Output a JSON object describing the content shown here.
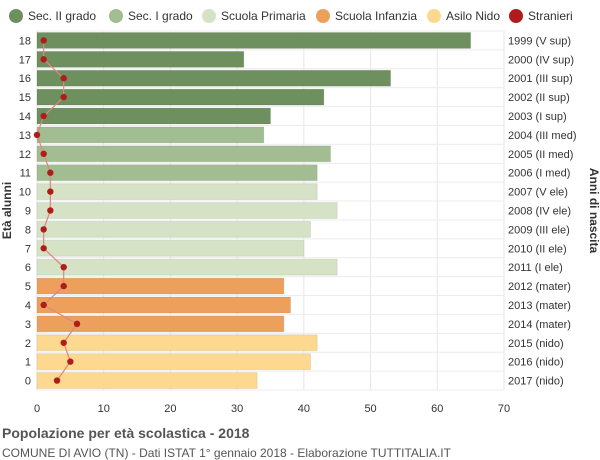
{
  "footer": {
    "title": "Popolazione per età scolastica - 2018",
    "subtitle": "COMUNE DI AVIO (TN) - Dati ISTAT 1° gennaio 2018 - Elaborazione TUTTITALIA.IT"
  },
  "chart_data": {
    "type": "bar",
    "orientation": "horizontal",
    "ylabel": "Età alunni",
    "ylabel_right": "Anni di nascita",
    "xlim": [
      0,
      70
    ],
    "x_ticks": [
      0,
      10,
      20,
      30,
      40,
      50,
      60,
      70
    ],
    "grid": true,
    "legend_position": "top",
    "legend": [
      {
        "name": "Sec. II grado",
        "color": "#6e8f5e"
      },
      {
        "name": "Sec. I grado",
        "color": "#a3bd92"
      },
      {
        "name": "Scuola Primaria",
        "color": "#d6e2c6"
      },
      {
        "name": "Scuola Infanzia",
        "color": "#eda05c"
      },
      {
        "name": "Asilo Nido",
        "color": "#fcd98e"
      },
      {
        "name": "Stranieri",
        "color": "#b01c1c"
      }
    ],
    "bars": [
      {
        "age": "18",
        "birth": "1999 (V sup)",
        "value": 65,
        "group": 0,
        "stranieri": 1
      },
      {
        "age": "17",
        "birth": "2000 (IV sup)",
        "value": 31,
        "group": 0,
        "stranieri": 1
      },
      {
        "age": "16",
        "birth": "2001 (III sup)",
        "value": 53,
        "group": 0,
        "stranieri": 4
      },
      {
        "age": "15",
        "birth": "2002 (II sup)",
        "value": 43,
        "group": 0,
        "stranieri": 4
      },
      {
        "age": "14",
        "birth": "2003 (I sup)",
        "value": 35,
        "group": 0,
        "stranieri": 1
      },
      {
        "age": "13",
        "birth": "2004 (III med)",
        "value": 34,
        "group": 1,
        "stranieri": 0
      },
      {
        "age": "12",
        "birth": "2005 (II med)",
        "value": 44,
        "group": 1,
        "stranieri": 1
      },
      {
        "age": "11",
        "birth": "2006 (I med)",
        "value": 42,
        "group": 1,
        "stranieri": 2
      },
      {
        "age": "10",
        "birth": "2007 (V ele)",
        "value": 42,
        "group": 2,
        "stranieri": 2
      },
      {
        "age": "9",
        "birth": "2008 (IV ele)",
        "value": 45,
        "group": 2,
        "stranieri": 2
      },
      {
        "age": "8",
        "birth": "2009 (III ele)",
        "value": 41,
        "group": 2,
        "stranieri": 1
      },
      {
        "age": "7",
        "birth": "2010 (II ele)",
        "value": 40,
        "group": 2,
        "stranieri": 1
      },
      {
        "age": "6",
        "birth": "2011 (I ele)",
        "value": 45,
        "group": 2,
        "stranieri": 4
      },
      {
        "age": "5",
        "birth": "2012 (mater)",
        "value": 37,
        "group": 3,
        "stranieri": 4
      },
      {
        "age": "4",
        "birth": "2013 (mater)",
        "value": 38,
        "group": 3,
        "stranieri": 1
      },
      {
        "age": "3",
        "birth": "2014 (mater)",
        "value": 37,
        "group": 3,
        "stranieri": 6
      },
      {
        "age": "2",
        "birth": "2015 (nido)",
        "value": 42,
        "group": 4,
        "stranieri": 4
      },
      {
        "age": "1",
        "birth": "2016 (nido)",
        "value": 41,
        "group": 4,
        "stranieri": 5
      },
      {
        "age": "0",
        "birth": "2017 (nido)",
        "value": 33,
        "group": 4,
        "stranieri": 3
      }
    ],
    "line_color": "#d9897f"
  }
}
